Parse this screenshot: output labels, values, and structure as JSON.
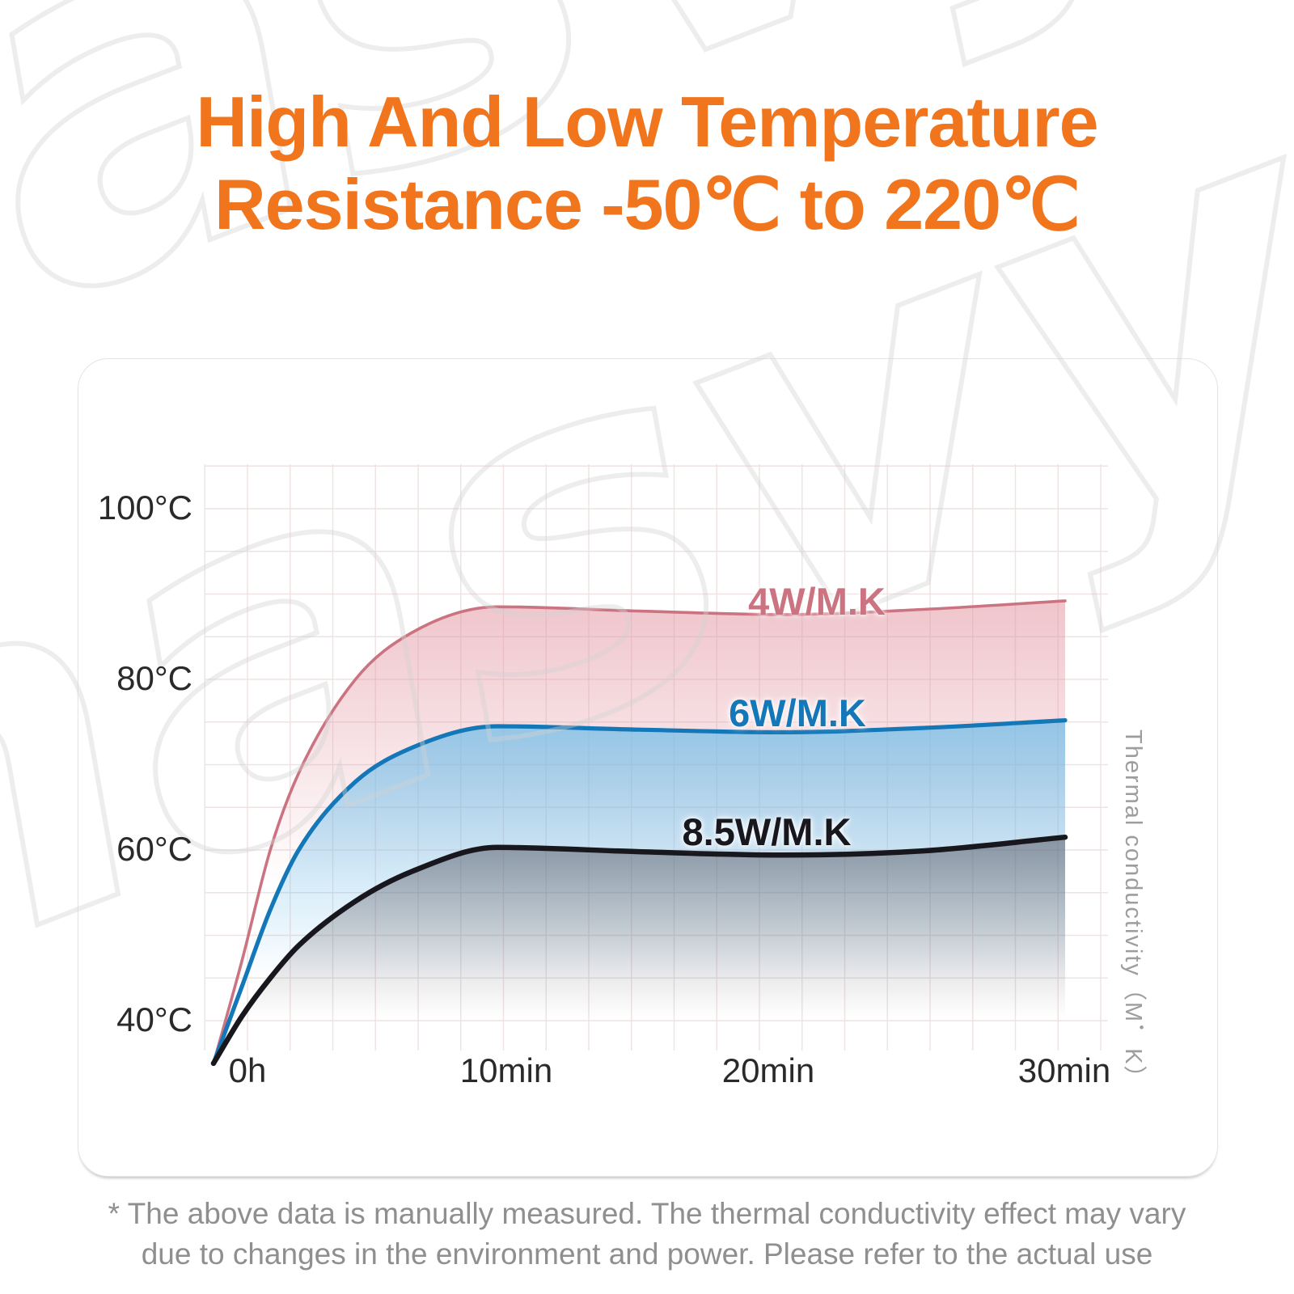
{
  "title": {
    "line1": "High And Low Temperature",
    "line2": "Resistance -50℃ to 220℃",
    "color": "#f0751c"
  },
  "watermark": {
    "text": "nasvyazi.ua"
  },
  "chart_data": {
    "type": "line",
    "title": "",
    "x_unit": "minutes",
    "x": [
      0,
      1,
      2,
      3,
      5,
      7,
      10,
      15,
      20,
      25,
      30
    ],
    "series": [
      {
        "name": "4W/M.K",
        "color": "#cb7380",
        "fill_color": "#e294a0",
        "values": [
          35,
          47,
          60,
          69,
          80,
          85.5,
          88.5,
          88,
          87.6,
          88.2,
          89.2
        ]
      },
      {
        "name": "6W/M.K",
        "color": "#1478b8",
        "fill_color": "#6fbce8",
        "values": [
          35,
          44,
          53,
          60,
          68,
          72,
          74.5,
          74.1,
          73.8,
          74.3,
          75.2
        ]
      },
      {
        "name": "8.5W/M.K",
        "color": "#17171d",
        "fill_color": "#55555f",
        "values": [
          35,
          40.5,
          45,
          48.8,
          54,
          57.5,
          60.3,
          59.8,
          59.4,
          59.9,
          61.5
        ]
      }
    ],
    "x_ticks": [
      "0h",
      "10min",
      "20min",
      "30min"
    ],
    "y_ticks": [
      "100°C",
      "80°C",
      "60°C",
      "40°C"
    ],
    "ylim": [
      35,
      105
    ],
    "right_axis_label": "Thermal conductivity（M．K）",
    "grid": true,
    "legend_position": "inline-labels-above-curves"
  },
  "footer": {
    "line1": "* The above data is manually measured. The thermal conductivity effect may vary",
    "line2": "due to changes in the environment and power. Please refer to the actual use"
  }
}
